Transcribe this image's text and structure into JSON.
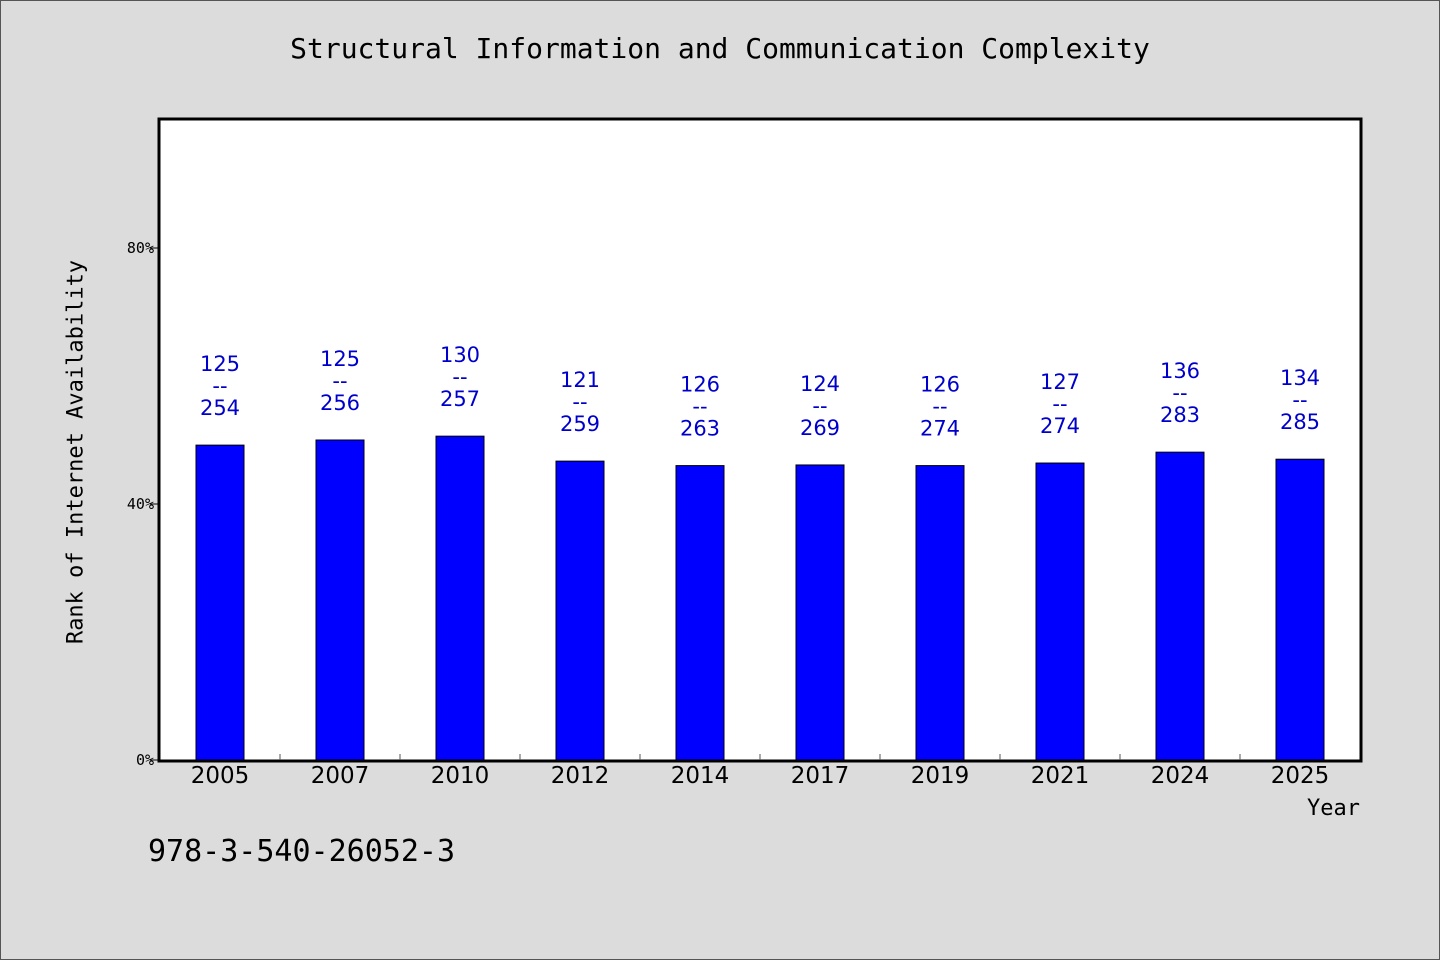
{
  "chart_data": {
    "type": "bar",
    "title": "Structural Information and Communication Complexity",
    "xlabel": "Year",
    "ylabel": "Rank of Internet Availability",
    "categories": [
      "2005",
      "2007",
      "2010",
      "2012",
      "2014",
      "2017",
      "2019",
      "2021",
      "2024",
      "2025"
    ],
    "values": [
      49.2,
      50.0,
      50.6,
      46.7,
      46.0,
      46.1,
      46.0,
      46.4,
      48.1,
      47.0
    ],
    "bar_labels": [
      [
        "125",
        "--",
        "254"
      ],
      [
        "125",
        "--",
        "256"
      ],
      [
        "130",
        "--",
        "257"
      ],
      [
        "121",
        "--",
        "259"
      ],
      [
        "126",
        "--",
        "263"
      ],
      [
        "124",
        "--",
        "269"
      ],
      [
        "126",
        "--",
        "274"
      ],
      [
        "127",
        "--",
        "274"
      ],
      [
        "136",
        "--",
        "283"
      ],
      [
        "134",
        "--",
        "285"
      ]
    ],
    "yticks": [
      0,
      40,
      80
    ],
    "ytick_labels": [
      "0%",
      "40%",
      "80%"
    ],
    "ylim": [
      0,
      100
    ],
    "grid": false,
    "colors": {
      "bar": "#0000ff",
      "bar_label": "#0000cc",
      "background": "#dcdcdc",
      "plot_background": "#ffffff"
    }
  },
  "footnote": "978-3-540-26052-3"
}
